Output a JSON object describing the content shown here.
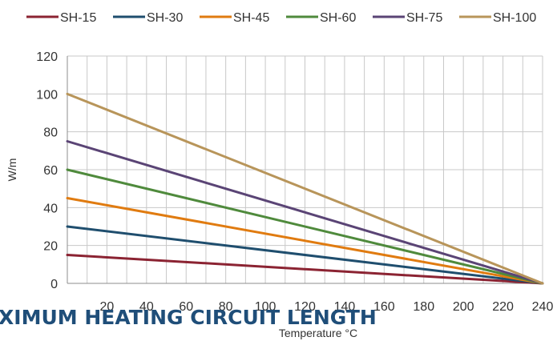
{
  "chart_data": {
    "type": "line",
    "title": "",
    "ylabel": "W/m",
    "xlabel": "Temperature °C",
    "xlim": [
      0,
      240
    ],
    "ylim": [
      0,
      120
    ],
    "x_ticks": [
      20,
      40,
      60,
      80,
      100,
      120,
      140,
      160,
      180,
      200,
      220,
      240
    ],
    "y_ticks": [
      0,
      20,
      40,
      60,
      80,
      100,
      120
    ],
    "grid": true,
    "legend_position": "top",
    "series": [
      {
        "name": "SH-15",
        "color": "#8b2332",
        "x": [
          0,
          240
        ],
        "y": [
          15,
          0
        ]
      },
      {
        "name": "SH-30",
        "color": "#1f4e6e",
        "x": [
          0,
          240
        ],
        "y": [
          30,
          0
        ]
      },
      {
        "name": "SH-45",
        "color": "#e07b10",
        "x": [
          0,
          240
        ],
        "y": [
          45,
          0
        ]
      },
      {
        "name": "SH-60",
        "color": "#4f8a3c",
        "x": [
          0,
          240
        ],
        "y": [
          60,
          0
        ]
      },
      {
        "name": "SH-75",
        "color": "#5a4475",
        "x": [
          0,
          240
        ],
        "y": [
          75,
          0
        ]
      },
      {
        "name": "SH-100",
        "color": "#b8955a",
        "x": [
          0,
          240
        ],
        "y": [
          100,
          0
        ]
      }
    ]
  },
  "overlay_heading": "XIMUM HEATING CIRCUIT LENGTH"
}
